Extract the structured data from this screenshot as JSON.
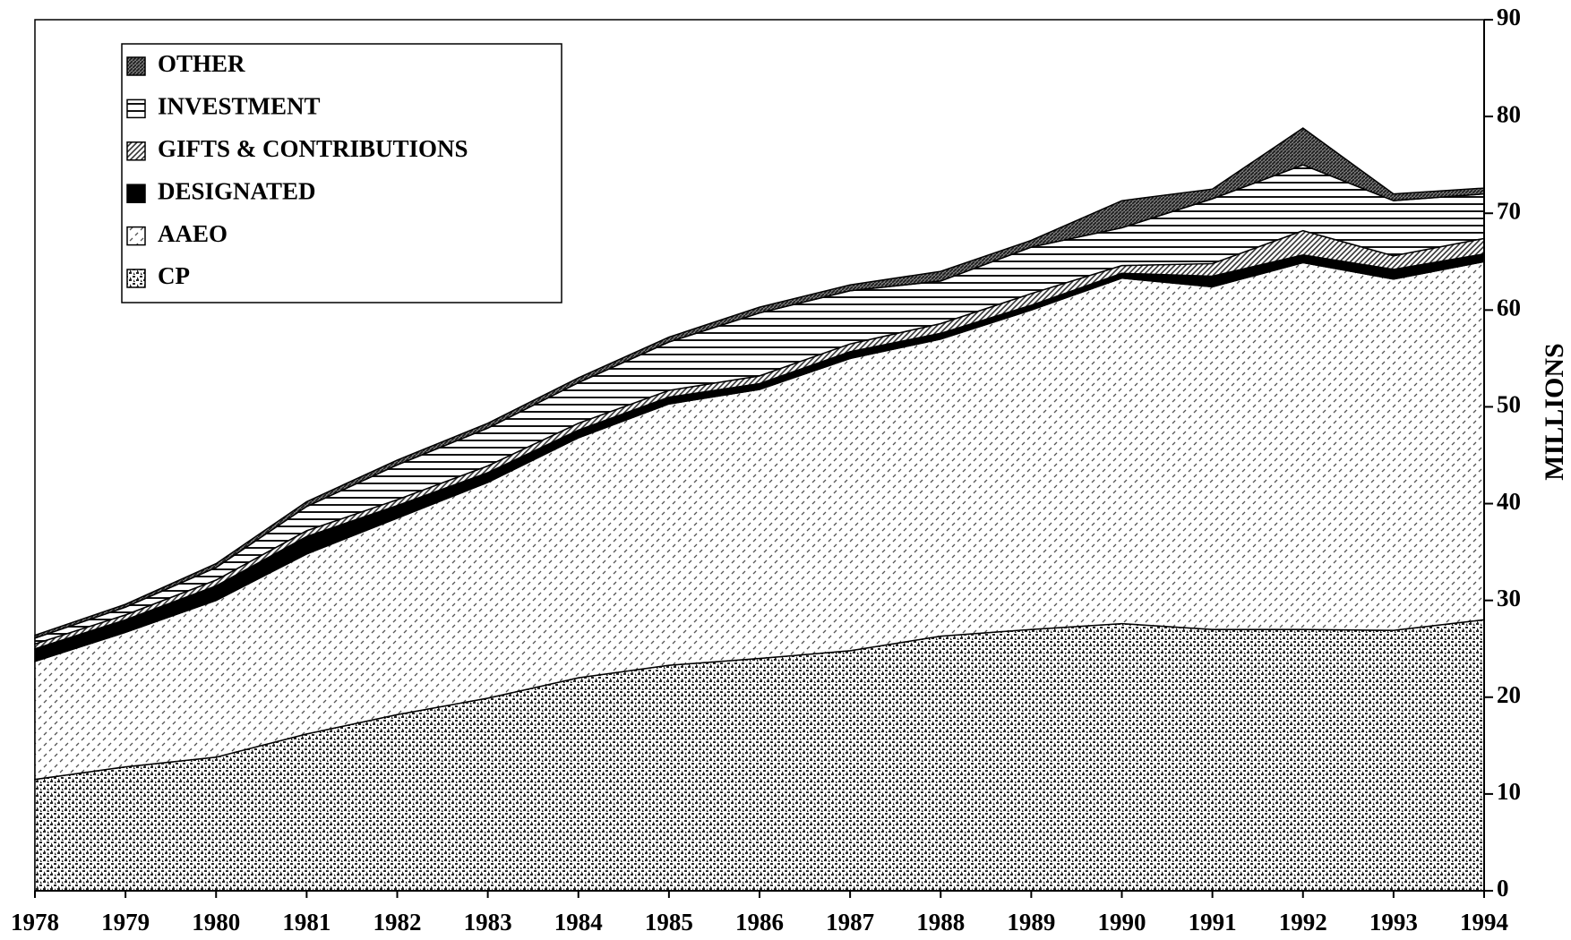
{
  "chart_data": {
    "type": "area",
    "stacked": true,
    "y_label": "MILLIONS",
    "categories": [
      "1978",
      "1979",
      "1980",
      "1981",
      "1982",
      "1983",
      "1984",
      "1985",
      "1986",
      "1987",
      "1988",
      "1989",
      "1990",
      "1991",
      "1992",
      "1993",
      "1994"
    ],
    "series": [
      {
        "name": "CP",
        "color": "#222222",
        "values": [
          11.5,
          12.8,
          13.8,
          16.2,
          18.2,
          19.9,
          22.0,
          23.3,
          24.0,
          24.8,
          26.3,
          27.0,
          27.6,
          27.0,
          27.0,
          26.9,
          28.0
        ]
      },
      {
        "name": "AAEO",
        "color": "#555555",
        "values": [
          12.2,
          13.9,
          16.2,
          18.6,
          20.3,
          22.3,
          24.8,
          27.0,
          27.8,
          30.2,
          30.7,
          33.0,
          35.7,
          35.4,
          37.9,
          36.3,
          37.0
        ]
      },
      {
        "name": "DESIGNATED",
        "color": "#000000",
        "values": [
          1.3,
          1.3,
          1.5,
          1.8,
          1.3,
          1.0,
          0.8,
          0.7,
          0.6,
          0.7,
          0.6,
          0.5,
          0.5,
          1.1,
          0.8,
          1.0,
          0.8
        ]
      },
      {
        "name": "GIFTS & CONTRIBUTIONS",
        "color": "#333333",
        "values": [
          0.5,
          0.5,
          0.6,
          0.6,
          0.6,
          0.7,
          0.7,
          0.7,
          0.8,
          0.8,
          1.0,
          1.2,
          0.8,
          1.3,
          2.5,
          1.4,
          1.6
        ]
      },
      {
        "name": "INVESTMENT",
        "color": "#111111",
        "values": [
          0.6,
          0.8,
          1.3,
          2.5,
          3.6,
          3.9,
          4.2,
          5.0,
          6.5,
          5.5,
          4.4,
          4.8,
          3.9,
          6.7,
          6.8,
          5.7,
          4.6
        ]
      },
      {
        "name": "OTHER",
        "color": "#1a1a1a",
        "values": [
          0.3,
          0.3,
          0.4,
          0.5,
          0.5,
          0.5,
          0.5,
          0.5,
          0.6,
          0.6,
          1.0,
          0.7,
          2.8,
          1.0,
          3.8,
          0.7,
          0.6
        ]
      }
    ],
    "ylim": [
      0,
      90
    ],
    "yticks": [
      0,
      10,
      20,
      30,
      40,
      50,
      60,
      70,
      80,
      90
    ],
    "y_axis_side": "right",
    "legend": "upper left"
  }
}
